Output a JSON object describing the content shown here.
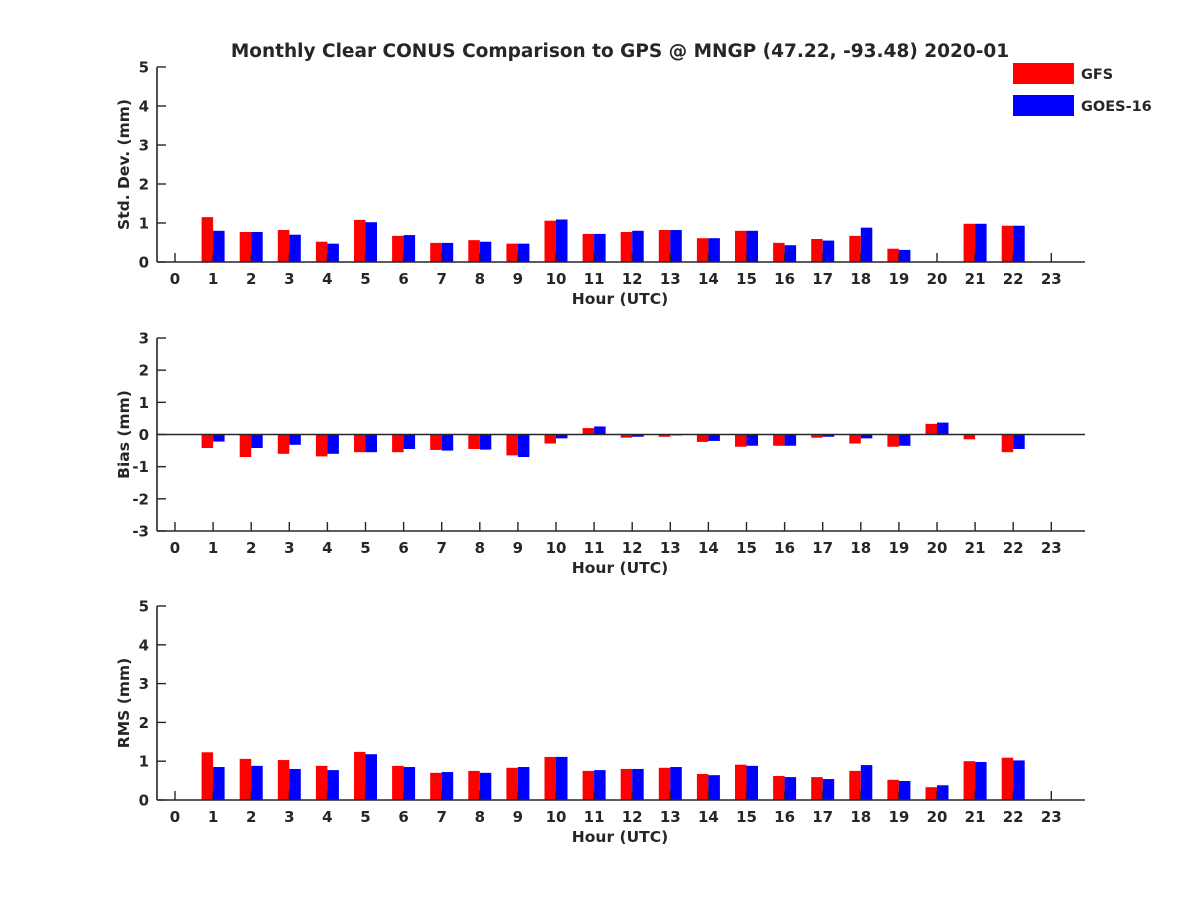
{
  "title": "Monthly Clear CONUS Comparison to GPS @ MNGP (47.22, -93.48) 2020-01",
  "legend": [
    {
      "label": "GFS",
      "color": "#ff0000"
    },
    {
      "label": "GOES-16",
      "color": "#0000ff"
    }
  ],
  "chart_data": [
    {
      "type": "bar",
      "ylabel": "Std. Dev. (mm)",
      "xlabel": "Hour (UTC)",
      "ylim": [
        0,
        5
      ],
      "yticks": [
        0,
        1,
        2,
        3,
        4,
        5
      ],
      "categories": [
        0,
        1,
        2,
        3,
        4,
        5,
        6,
        7,
        8,
        9,
        10,
        11,
        12,
        13,
        14,
        15,
        16,
        17,
        18,
        19,
        20,
        21,
        22,
        23
      ],
      "series": [
        {
          "name": "GFS",
          "values": [
            null,
            1.15,
            0.77,
            0.82,
            0.52,
            1.08,
            0.67,
            0.49,
            0.56,
            0.47,
            1.06,
            0.72,
            0.77,
            0.82,
            0.61,
            0.8,
            0.49,
            0.59,
            0.67,
            0.34,
            null,
            0.98,
            0.93,
            null
          ]
        },
        {
          "name": "GOES-16",
          "values": [
            null,
            0.8,
            0.77,
            0.7,
            0.47,
            1.02,
            0.69,
            0.49,
            0.52,
            0.47,
            1.09,
            0.72,
            0.8,
            0.82,
            0.61,
            0.8,
            0.43,
            0.55,
            0.88,
            0.31,
            null,
            0.98,
            0.93,
            null
          ]
        }
      ]
    },
    {
      "type": "bar",
      "ylabel": "Bias (mm)",
      "xlabel": "Hour (UTC)",
      "ylim": [
        -3,
        3
      ],
      "yticks": [
        -3,
        -2,
        -1,
        0,
        1,
        2,
        3
      ],
      "zero_line": true,
      "categories": [
        0,
        1,
        2,
        3,
        4,
        5,
        6,
        7,
        8,
        9,
        10,
        11,
        12,
        13,
        14,
        15,
        16,
        17,
        18,
        19,
        20,
        21,
        22,
        23
      ],
      "series": [
        {
          "name": "GFS",
          "values": [
            null,
            -0.42,
            -0.7,
            -0.6,
            -0.68,
            -0.55,
            -0.55,
            -0.48,
            -0.45,
            -0.65,
            -0.28,
            0.2,
            -0.1,
            -0.07,
            -0.23,
            -0.38,
            -0.35,
            -0.1,
            -0.28,
            -0.38,
            0.33,
            -0.15,
            -0.55,
            null
          ]
        },
        {
          "name": "GOES-16",
          "values": [
            null,
            -0.22,
            -0.42,
            -0.32,
            -0.6,
            -0.55,
            -0.45,
            -0.5,
            -0.47,
            -0.7,
            -0.12,
            0.25,
            -0.07,
            -0.03,
            -0.2,
            -0.35,
            -0.35,
            -0.07,
            -0.12,
            -0.35,
            0.37,
            0,
            -0.45,
            null
          ]
        }
      ]
    },
    {
      "type": "bar",
      "ylabel": "RMS (mm)",
      "xlabel": "Hour (UTC)",
      "ylim": [
        0,
        5
      ],
      "yticks": [
        0,
        1,
        2,
        3,
        4,
        5
      ],
      "categories": [
        0,
        1,
        2,
        3,
        4,
        5,
        6,
        7,
        8,
        9,
        10,
        11,
        12,
        13,
        14,
        15,
        16,
        17,
        18,
        19,
        20,
        21,
        22,
        23
      ],
      "series": [
        {
          "name": "GFS",
          "values": [
            null,
            1.23,
            1.06,
            1.03,
            0.88,
            1.24,
            0.88,
            0.7,
            0.75,
            0.83,
            1.11,
            0.75,
            0.8,
            0.83,
            0.67,
            0.91,
            0.62,
            0.59,
            0.75,
            0.52,
            0.33,
            1.0,
            1.09,
            null
          ]
        },
        {
          "name": "GOES-16",
          "values": [
            null,
            0.85,
            0.88,
            0.8,
            0.77,
            1.18,
            0.85,
            0.72,
            0.7,
            0.85,
            1.11,
            0.77,
            0.8,
            0.85,
            0.64,
            0.88,
            0.59,
            0.54,
            0.9,
            0.49,
            0.38,
            0.98,
            1.02,
            null
          ]
        }
      ]
    }
  ]
}
